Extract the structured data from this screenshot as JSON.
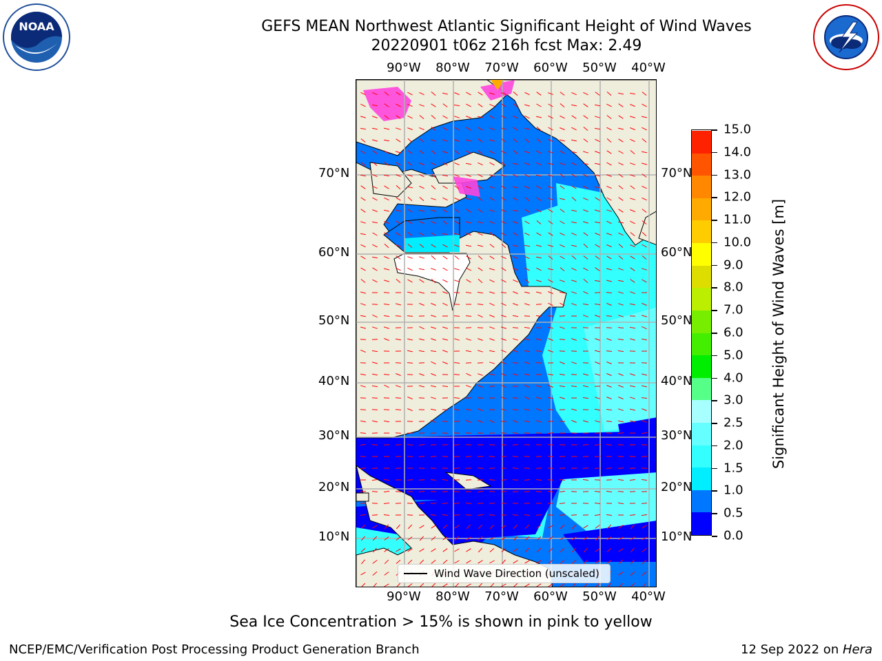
{
  "header": {
    "title": "GEFS MEAN Northwest Atlantic Significant Height of Wind Waves",
    "subtitle": "20220901 t06z 216h fcst   Max: 2.49"
  },
  "logos": {
    "left": "noaa-logo",
    "right": "national-weather-service-logo"
  },
  "map": {
    "lon_ticks": [
      "90°W",
      "80°W",
      "70°W",
      "60°W",
      "50°W",
      "40°W"
    ],
    "lat_ticks": [
      "70°N",
      "60°N",
      "50°N",
      "40°N",
      "30°N",
      "20°N",
      "10°N"
    ],
    "legend": "Wind Wave Direction (unscaled)",
    "colors": {
      "land": "#efeddc",
      "no_data": "#ffffff",
      "sea_ice": "#ff44dd",
      "arrow": "#ff0000"
    }
  },
  "colorbar": {
    "title": "Significant Height of Wind Waves [m]",
    "ticks": [
      "0.0",
      "0.5",
      "1.0",
      "1.5",
      "2.0",
      "2.5",
      "3.0",
      "4.0",
      "5.0",
      "6.0",
      "7.0",
      "8.0",
      "9.0",
      "10.0",
      "11.0",
      "12.0",
      "13.0",
      "14.0",
      "15.0"
    ],
    "colors": [
      "#0000ff",
      "#0077ff",
      "#00eeff",
      "#33ffff",
      "#66ffff",
      "#a8ffff",
      "#55ff88",
      "#00ee00",
      "#44ee00",
      "#77ee00",
      "#bbee00",
      "#dddd00",
      "#ffff00",
      "#ffcc00",
      "#ffaa00",
      "#ff8800",
      "#ff5500",
      "#ff2200"
    ]
  },
  "footer": {
    "note": "Sea Ice Concentration > 15% is shown in pink to yellow",
    "left": "NCEP/EMC/Verification Post Processing Product Generation Branch",
    "right_prefix": "12 Sep 2022 on ",
    "right_machine": "Hera"
  }
}
